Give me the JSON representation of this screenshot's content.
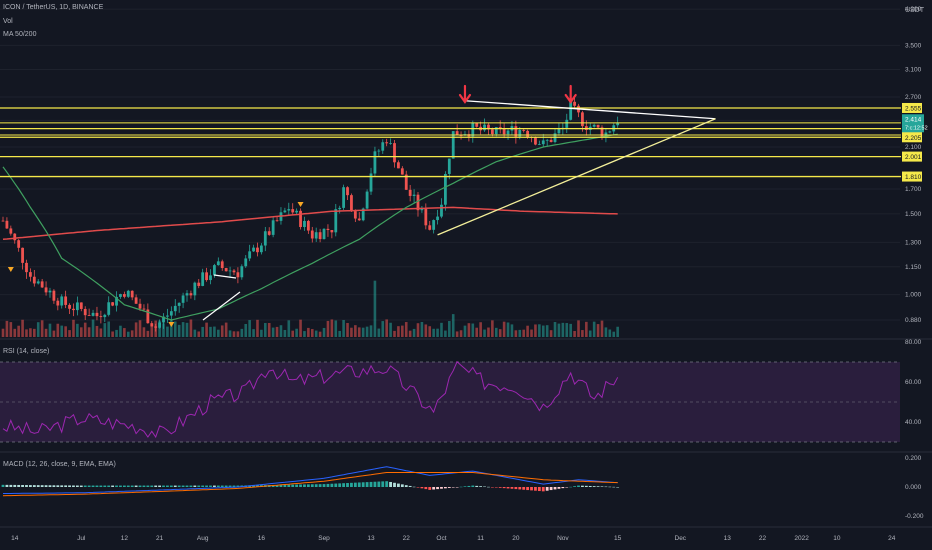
{
  "legend": {
    "symbol": "ICON / TetherUS, 1D, BINANCE",
    "vol": "Vol",
    "ma": "MA 50/200",
    "rsi": "RSI (14, close)",
    "macd": "MACD (12, 26, close, 9, EMA, EMA)"
  },
  "currency": "USDT",
  "colors": {
    "background": "#131722",
    "bull": "#26a69a",
    "bear": "#ef5350",
    "level_line": "#f5e94a",
    "ma_fast": "#3fa060",
    "ma_slow": "#e14b4b",
    "rsi": "#9c27b0",
    "rsi_band": "#2a1e3d",
    "macd": "#2962ff",
    "signal": "#ff6d00"
  },
  "chart_data": [
    {
      "type": "candlestick",
      "title": "ICON / TetherUS, 1D, BINANCE",
      "scale": "log",
      "y_ticks": [
        "4.200",
        "3.500",
        "3.100",
        "2.700",
        "2.400",
        "2.100",
        "1.700",
        "1.500",
        "1.300",
        "1.150",
        "1.000",
        "0.880"
      ],
      "x_ticks": [
        "14",
        "Jul",
        "12",
        "21",
        "Aug",
        "16",
        "Sep",
        "13",
        "22",
        "Oct",
        "11",
        "20",
        "Nov",
        "15",
        "Dec",
        "13",
        "22",
        "2022",
        "10",
        "24"
      ],
      "last_price": "2.414",
      "countdown": "7:c:12:52",
      "price_levels": [
        {
          "label": "2.555",
          "value": 2.555
        },
        {
          "label": "2.303",
          "value": 2.303
        },
        {
          "label": "2.205",
          "value": 2.205
        },
        {
          "label": "2.001",
          "value": 2.001
        },
        {
          "label": "1.810",
          "value": 1.81
        }
      ],
      "extra_level_lines": [
        2.37,
        2.23
      ],
      "anchors": [
        {
          "date": "2021-06-11",
          "close": 1.45
        },
        {
          "date": "2021-06-18",
          "close": 1.1
        },
        {
          "date": "2021-06-26",
          "close": 0.96
        },
        {
          "date": "2021-07-05",
          "close": 0.9
        },
        {
          "date": "2021-07-12",
          "close": 1.02
        },
        {
          "date": "2021-07-20",
          "close": 0.85
        },
        {
          "date": "2021-07-24",
          "close": 0.92
        },
        {
          "date": "2021-07-30",
          "close": 1.05
        },
        {
          "date": "2021-08-05",
          "close": 1.15
        },
        {
          "date": "2021-08-10",
          "close": 1.12
        },
        {
          "date": "2021-08-16",
          "close": 1.3
        },
        {
          "date": "2021-08-23",
          "close": 1.55
        },
        {
          "date": "2021-08-29",
          "close": 1.35
        },
        {
          "date": "2021-09-03",
          "close": 1.4
        },
        {
          "date": "2021-09-06",
          "close": 1.7
        },
        {
          "date": "2021-09-10",
          "close": 1.45
        },
        {
          "date": "2021-09-14",
          "close": 2.0
        },
        {
          "date": "2021-09-17",
          "close": 2.2
        },
        {
          "date": "2021-09-22",
          "close": 1.7
        },
        {
          "date": "2021-09-28",
          "close": 1.4
        },
        {
          "date": "2021-10-01",
          "close": 1.6
        },
        {
          "date": "2021-10-04",
          "close": 2.25
        },
        {
          "date": "2021-10-09",
          "close": 2.3
        },
        {
          "date": "2021-10-15",
          "close": 2.25
        },
        {
          "date": "2021-10-22",
          "close": 2.3
        },
        {
          "date": "2021-10-27",
          "close": 2.12
        },
        {
          "date": "2021-11-01",
          "close": 2.3
        },
        {
          "date": "2021-11-03",
          "close": 2.55
        },
        {
          "date": "2021-11-07",
          "close": 2.35
        },
        {
          "date": "2021-11-12",
          "close": 2.25
        },
        {
          "date": "2021-11-15",
          "close": 2.414
        }
      ],
      "ma_fast": [
        {
          "date": "2021-06-11",
          "value": 1.9
        },
        {
          "date": "2021-06-18",
          "value": 1.55
        },
        {
          "date": "2021-06-26",
          "value": 1.2
        },
        {
          "date": "2021-07-12",
          "value": 0.95
        },
        {
          "date": "2021-07-24",
          "value": 0.88
        },
        {
          "date": "2021-08-05",
          "value": 0.93
        },
        {
          "date": "2021-08-16",
          "value": 1.03
        },
        {
          "date": "2021-08-29",
          "value": 1.17
        },
        {
          "date": "2021-09-10",
          "value": 1.32
        },
        {
          "date": "2021-09-22",
          "value": 1.55
        },
        {
          "date": "2021-10-04",
          "value": 1.75
        },
        {
          "date": "2021-10-15",
          "value": 1.95
        },
        {
          "date": "2021-10-27",
          "value": 2.1
        },
        {
          "date": "2021-11-07",
          "value": 2.18
        },
        {
          "date": "2021-11-15",
          "value": 2.24
        }
      ],
      "ma_slow": [
        {
          "date": "2021-06-11",
          "value": 1.32
        },
        {
          "date": "2021-07-05",
          "value": 1.38
        },
        {
          "date": "2021-08-05",
          "value": 1.44
        },
        {
          "date": "2021-09-03",
          "value": 1.52
        },
        {
          "date": "2021-10-04",
          "value": 1.55
        },
        {
          "date": "2021-10-22",
          "value": 1.52
        },
        {
          "date": "2021-11-15",
          "value": 1.5
        }
      ],
      "triangle": {
        "upper": [
          {
            "date": "2021-10-07",
            "value": 2.65
          },
          {
            "date": "2021-12-10",
            "value": 2.42
          }
        ],
        "lower": [
          {
            "date": "2021-09-30",
            "value": 1.35
          },
          {
            "date": "2021-12-10",
            "value": 2.42
          }
        ]
      },
      "sell_markers": [
        "2021-10-07",
        "2021-11-03"
      ]
    },
    {
      "type": "line",
      "title": "RSI (14, close)",
      "y_ticks": [
        "80.00",
        "60.00",
        "40.00"
      ],
      "band": [
        30,
        70
      ],
      "midline": 50,
      "anchors": [
        {
          "date": "2021-06-11",
          "value": 38
        },
        {
          "date": "2021-06-20",
          "value": 35
        },
        {
          "date": "2021-07-01",
          "value": 42
        },
        {
          "date": "2021-07-15",
          "value": 38
        },
        {
          "date": "2021-07-22",
          "value": 34
        },
        {
          "date": "2021-08-03",
          "value": 50
        },
        {
          "date": "2021-08-12",
          "value": 55
        },
        {
          "date": "2021-08-18",
          "value": 68
        },
        {
          "date": "2021-08-24",
          "value": 60
        },
        {
          "date": "2021-09-07",
          "value": 65
        },
        {
          "date": "2021-09-17",
          "value": 67
        },
        {
          "date": "2021-09-29",
          "value": 45
        },
        {
          "date": "2021-10-05",
          "value": 68
        },
        {
          "date": "2021-10-12",
          "value": 60
        },
        {
          "date": "2021-10-20",
          "value": 58
        },
        {
          "date": "2021-10-27",
          "value": 48
        },
        {
          "date": "2021-11-03",
          "value": 65
        },
        {
          "date": "2021-11-09",
          "value": 52
        },
        {
          "date": "2021-11-15",
          "value": 63
        }
      ]
    },
    {
      "type": "line",
      "title": "MACD (12, 26, close, 9, EMA, EMA)",
      "y_ticks": [
        "0.200",
        "0.000",
        "-0.200"
      ],
      "macd": [
        {
          "date": "2021-06-11",
          "value": -0.045
        },
        {
          "date": "2021-07-01",
          "value": -0.04
        },
        {
          "date": "2021-07-22",
          "value": -0.02
        },
        {
          "date": "2021-08-10",
          "value": 0.0
        },
        {
          "date": "2021-09-01",
          "value": 0.06
        },
        {
          "date": "2021-09-17",
          "value": 0.14
        },
        {
          "date": "2021-09-28",
          "value": 0.08
        },
        {
          "date": "2021-10-09",
          "value": 0.11
        },
        {
          "date": "2021-10-27",
          "value": 0.02
        },
        {
          "date": "2021-11-05",
          "value": 0.05
        },
        {
          "date": "2021-11-15",
          "value": 0.03
        }
      ],
      "signal": [
        {
          "date": "2021-06-11",
          "value": -0.06
        },
        {
          "date": "2021-07-01",
          "value": -0.05
        },
        {
          "date": "2021-07-22",
          "value": -0.03
        },
        {
          "date": "2021-08-10",
          "value": -0.01
        },
        {
          "date": "2021-09-01",
          "value": 0.04
        },
        {
          "date": "2021-09-17",
          "value": 0.1
        },
        {
          "date": "2021-09-28",
          "value": 0.1
        },
        {
          "date": "2021-10-09",
          "value": 0.1
        },
        {
          "date": "2021-10-27",
          "value": 0.05
        },
        {
          "date": "2021-11-05",
          "value": 0.04
        },
        {
          "date": "2021-11-15",
          "value": 0.03
        }
      ]
    }
  ]
}
